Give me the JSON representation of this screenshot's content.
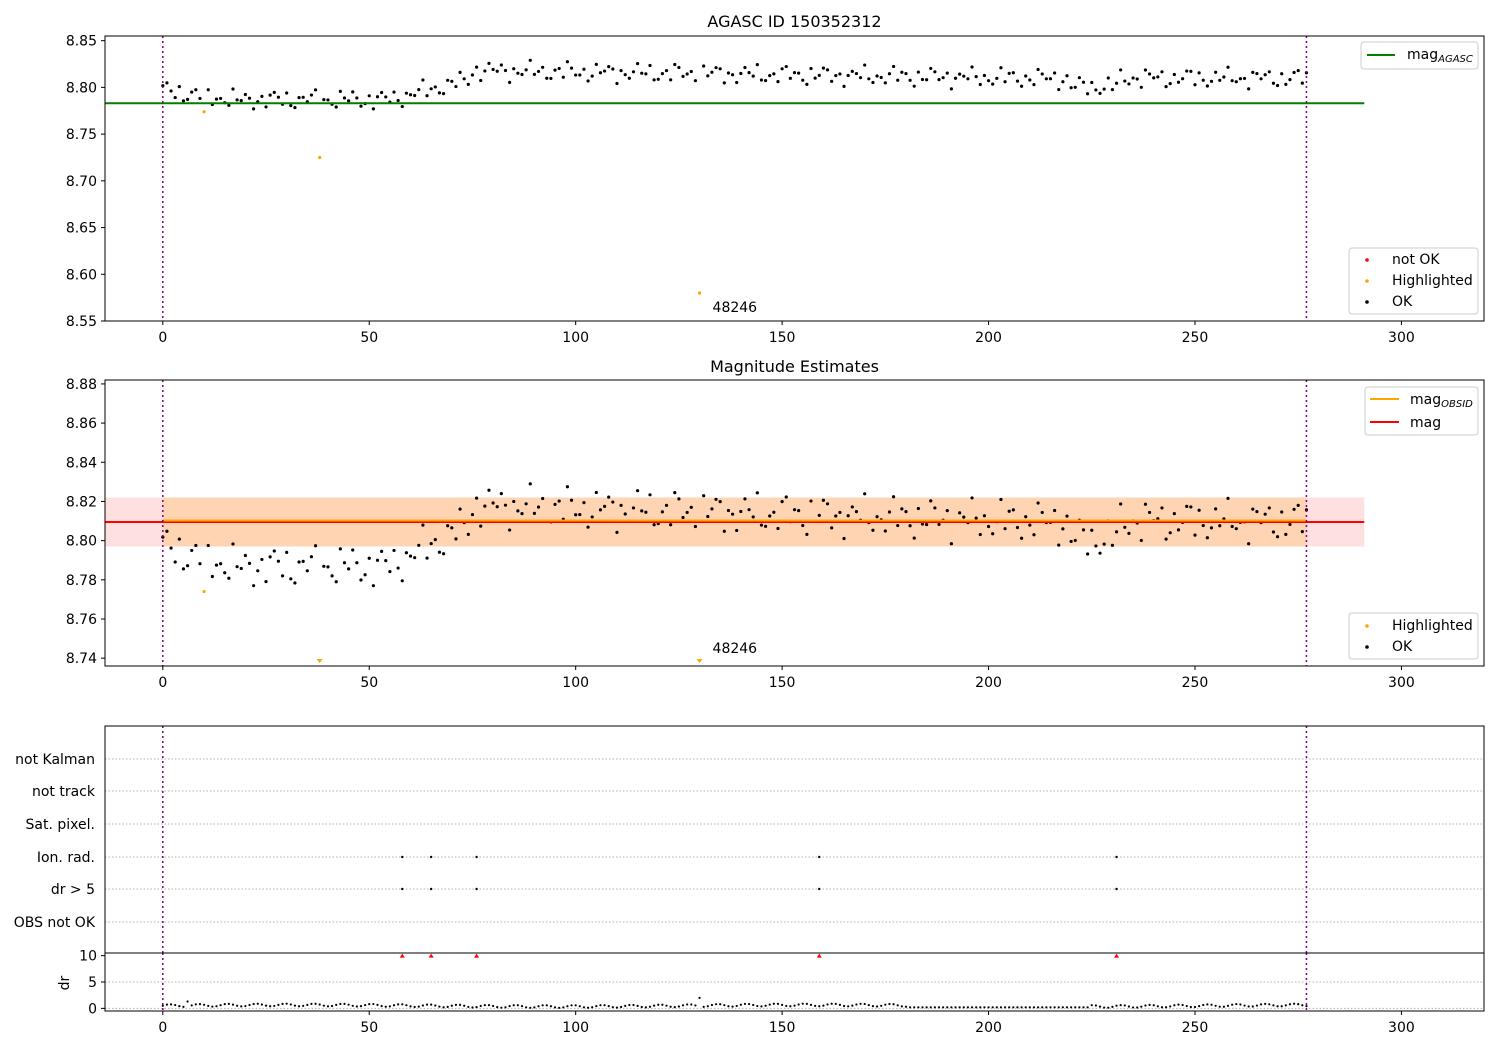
{
  "chart_data": [
    {
      "type": "scatter",
      "title": "AGASC ID 150352312",
      "xlim": [
        -14,
        320
      ],
      "ylim": [
        8.55,
        8.855
      ],
      "xticks": [
        0,
        50,
        100,
        150,
        200,
        250,
        300
      ],
      "yticks": [
        8.55,
        8.6,
        8.65,
        8.7,
        8.75,
        8.8,
        8.85
      ],
      "ytick_labels": [
        "8.55",
        "8.60",
        "8.65",
        "8.70",
        "8.75",
        "8.80",
        "8.85"
      ],
      "vlines": [
        0,
        277
      ],
      "hline": {
        "label": "mag",
        "label_sub": "AGASC",
        "value": 8.783,
        "x_range": [
          -14,
          291
        ],
        "color": "#008000"
      },
      "series": [
        {
          "name": "not OK",
          "color": "#ff0000",
          "points": []
        },
        {
          "name": "Highlighted",
          "color": "#ffa500",
          "points": [
            [
              10,
              8.774
            ],
            [
              38,
              8.725
            ],
            [
              130,
              8.58
            ]
          ]
        },
        {
          "name": "OK",
          "color": "#000000"
        }
      ],
      "annotations": [
        {
          "text": "48246",
          "x": 130,
          "y": 8.58
        }
      ]
    },
    {
      "type": "scatter",
      "title": "Magnitude Estimates",
      "xlim": [
        -14,
        320
      ],
      "ylim": [
        8.736,
        8.882
      ],
      "xticks": [
        0,
        50,
        100,
        150,
        200,
        250,
        300
      ],
      "yticks": [
        8.74,
        8.76,
        8.78,
        8.8,
        8.82,
        8.84,
        8.86,
        8.88
      ],
      "ytick_labels": [
        "8.74",
        "8.76",
        "8.78",
        "8.80",
        "8.82",
        "8.84",
        "8.86",
        "8.88"
      ],
      "vlines": [
        0,
        277
      ],
      "mag_obsid": {
        "label": "mag",
        "label_sub": "OBSID",
        "value": 8.8095,
        "band": [
          8.797,
          8.822
        ],
        "x_range": [
          0,
          277
        ],
        "color": "#ffa500"
      },
      "mag": {
        "label": "mag",
        "value": 8.8095,
        "band": [
          8.797,
          8.822
        ],
        "x_range": [
          -14,
          291
        ],
        "color": "#ff0000"
      },
      "series": [
        {
          "name": "Highlighted",
          "color": "#ffa500",
          "points": [
            [
              10,
              8.774
            ]
          ],
          "clipped_points": [
            38,
            130
          ]
        },
        {
          "name": "OK",
          "color": "#000000"
        }
      ],
      "annotations": [
        {
          "text": "48246",
          "x": 130,
          "y": 8.738
        }
      ]
    },
    {
      "type": "scatter",
      "title": "",
      "xlim": [
        -14,
        320
      ],
      "categories": [
        "not Kalman",
        "not track",
        "Sat. pixel.",
        "Ion. rad.",
        "dr > 5",
        "OBS not OK"
      ],
      "vlines": [
        0,
        277
      ],
      "flag_points": {
        "Ion. rad.": [
          58,
          65,
          76,
          159,
          231
        ],
        "dr > 5": [
          58,
          65,
          76,
          159,
          231
        ]
      }
    },
    {
      "type": "scatter",
      "title": "",
      "ylabel": "dr",
      "xlim": [
        -14,
        320
      ],
      "ylim": [
        -0.5,
        10.5
      ],
      "xticks": [
        0,
        50,
        100,
        150,
        200,
        250,
        300
      ],
      "yticks": [
        0,
        5,
        10
      ],
      "ytick_labels": [
        "0",
        "5",
        "10"
      ],
      "vlines": [
        0,
        277
      ],
      "clipped_markers": [
        58,
        65,
        76,
        159,
        231
      ],
      "outliers": [
        [
          130,
          2.0
        ],
        [
          6,
          1.3
        ]
      ],
      "baseline_dr": 0.5
    }
  ],
  "legends": {
    "top_upper": [
      {
        "label": "mag",
        "sub": "AGASC"
      }
    ],
    "top_lower": [
      "not OK",
      "Highlighted",
      "OK"
    ],
    "mid_upper": [
      {
        "label": "mag",
        "sub": "OBSID"
      },
      {
        "label": "mag",
        "sub": ""
      }
    ],
    "mid_lower": [
      "Highlighted",
      "OK"
    ]
  }
}
